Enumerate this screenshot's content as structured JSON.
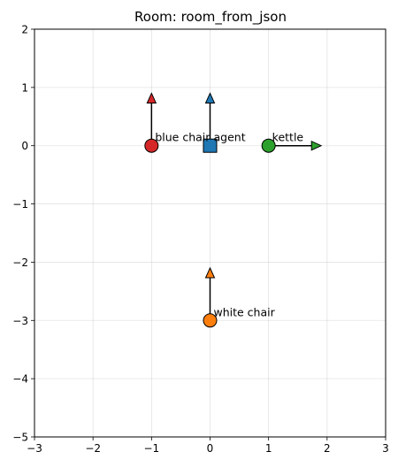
{
  "chart_data": {
    "type": "scatter",
    "title": "Room: room_from_json",
    "xlabel": "",
    "ylabel": "",
    "xlim": [
      -3,
      3
    ],
    "ylim": [
      -5,
      2
    ],
    "x_ticks": [
      -3,
      -2,
      -1,
      0,
      1,
      2,
      3
    ],
    "y_ticks": [
      -5,
      -4,
      -3,
      -2,
      -1,
      0,
      1,
      2
    ],
    "grid": true,
    "objects": [
      {
        "label": "blue chair",
        "x": -1,
        "y": 0,
        "marker": "circle",
        "color": "#d62728",
        "heading": [
          0,
          1
        ]
      },
      {
        "label": "agent",
        "x": 0,
        "y": 0,
        "marker": "square",
        "color": "#1f77b4",
        "heading": [
          0,
          1
        ]
      },
      {
        "label": "kettle",
        "x": 1,
        "y": 0,
        "marker": "circle",
        "color": "#2ca02c",
        "heading": [
          1,
          0
        ]
      },
      {
        "label": "white chair",
        "x": 0,
        "y": -3,
        "marker": "circle",
        "color": "#ff7f0e",
        "heading": [
          0,
          1
        ]
      }
    ]
  }
}
